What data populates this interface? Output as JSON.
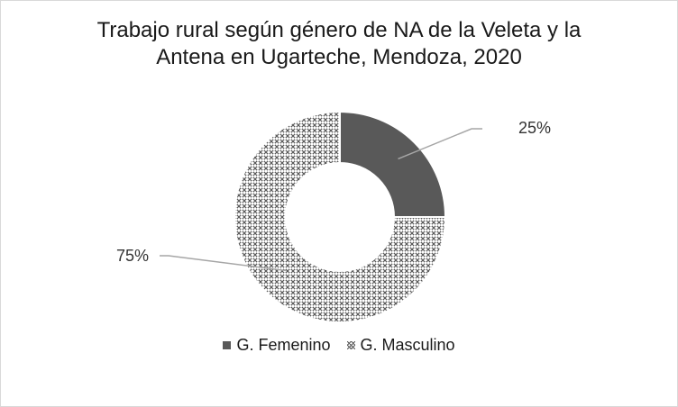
{
  "chart_data": {
    "type": "pie",
    "variant": "donut",
    "title": "Trabajo rural según género de NA de la Veleta y la Antena en Ugarteche, Mendoza, 2020",
    "title_lines": [
      "Trabajo rural según género de NA de la Veleta y la",
      "Antena en Ugarteche, Mendoza, 2020"
    ],
    "categories": [
      "G. Femenino",
      "G. Masculino"
    ],
    "values": [
      25,
      75
    ],
    "labels": [
      "25%",
      "75%"
    ],
    "colors": [
      "#595959",
      "#bfbfbf"
    ],
    "patterns": [
      "solid",
      "crosshatch"
    ],
    "legend_position": "bottom"
  }
}
